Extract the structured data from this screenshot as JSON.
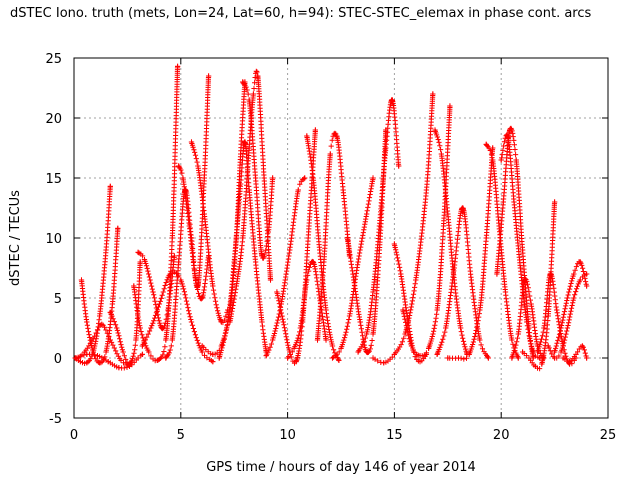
{
  "chart_data": {
    "type": "scatter",
    "title": "dSTEC Iono. truth (mets, Lon=24, Lat=60, h=94): STEC-STEC_elemax in phase cont. arcs",
    "xlabel": "GPS time / hours of day 146 of year 2014",
    "ylabel": "dSTEC  / TECUs",
    "xlim": [
      0,
      25
    ],
    "ylim": [
      -5,
      25
    ],
    "xticks": [
      "0",
      "5",
      "10",
      "15",
      "20",
      "25"
    ],
    "yticks": [
      "-5",
      "0",
      "5",
      "10",
      "15",
      "20",
      "25"
    ],
    "grid": true,
    "marker": "+",
    "color": "#ff0000",
    "series": [
      {
        "x": [
          0.05,
          0.3,
          0.6,
          0.9,
          1.2,
          1.5,
          1.7
        ],
        "y": [
          0.0,
          -0.3,
          -0.4,
          0.5,
          3.5,
          9.0,
          14.3
        ]
      },
      {
        "x": [
          0.35,
          0.6,
          0.9,
          1.2,
          1.5,
          1.8,
          2.05
        ],
        "y": [
          6.5,
          3.0,
          0.5,
          -0.4,
          0.5,
          4.5,
          10.8
        ]
      },
      {
        "x": [
          0.2,
          0.5,
          0.9,
          1.3,
          1.7,
          2.2,
          2.6
        ],
        "y": [
          0.0,
          0.5,
          1.6,
          2.8,
          1.5,
          -0.2,
          -0.6
        ]
      },
      {
        "x": [
          0.1,
          0.6,
          1.1,
          1.6,
          2.1,
          2.6,
          3.0,
          3.2
        ],
        "y": [
          0.0,
          0.3,
          0.2,
          -0.3,
          -0.8,
          -0.7,
          0.0,
          0.3
        ]
      },
      {
        "x": [
          1.7,
          2.0,
          2.3,
          2.6,
          2.9,
          3.1
        ],
        "y": [
          3.8,
          2.5,
          0.5,
          -0.5,
          1.5,
          8.0
        ]
      },
      {
        "x": [
          2.8,
          3.1,
          3.5,
          3.9,
          4.3,
          4.6,
          4.85
        ],
        "y": [
          6.0,
          2.5,
          0.5,
          -0.2,
          1.5,
          10.0,
          24.3
        ]
      },
      {
        "x": [
          3.0,
          3.3,
          3.7,
          4.1,
          4.4,
          4.7
        ],
        "y": [
          8.8,
          8.2,
          5.5,
          2.5,
          4.0,
          8.5
        ]
      },
      {
        "x": [
          3.2,
          3.6,
          4.0,
          4.5,
          5.0,
          5.5,
          6.0,
          6.5
        ],
        "y": [
          1.0,
          2.5,
          4.5,
          7.0,
          6.5,
          3.0,
          0.5,
          -0.3
        ]
      },
      {
        "x": [
          4.3,
          4.6,
          4.9,
          5.2,
          5.5,
          5.8,
          6.1,
          6.3
        ],
        "y": [
          0.0,
          1.5,
          8.0,
          14.0,
          10.0,
          6.0,
          15.0,
          23.5
        ]
      },
      {
        "x": [
          4.9,
          5.1,
          5.4,
          5.7,
          6.0,
          6.3
        ],
        "y": [
          16.0,
          15.0,
          11.0,
          6.5,
          5.0,
          8.5
        ]
      },
      {
        "x": [
          5.5,
          5.8,
          6.1,
          6.5,
          6.9,
          7.2
        ],
        "y": [
          18.0,
          16.0,
          12.0,
          6.0,
          3.0,
          4.0
        ]
      },
      {
        "x": [
          6.0,
          6.5,
          6.9,
          7.3,
          7.6,
          7.8,
          8.0
        ],
        "y": [
          1.0,
          0.3,
          1.0,
          4.0,
          10.0,
          17.0,
          23.0
        ]
      },
      {
        "x": [
          6.8,
          7.2,
          7.5,
          7.8,
          8.0,
          8.2,
          8.5,
          8.8,
          9.0
        ],
        "y": [
          0.0,
          3.0,
          8.0,
          14.5,
          18.0,
          14.0,
          8.0,
          3.0,
          0.5
        ]
      },
      {
        "x": [
          7.3,
          7.6,
          7.9,
          8.2,
          8.4,
          8.6,
          8.9,
          9.2
        ],
        "y": [
          3.0,
          6.0,
          10.0,
          17.5,
          22.0,
          23.5,
          15.0,
          6.5
        ]
      },
      {
        "x": [
          7.9,
          8.2,
          8.5,
          8.8,
          9.1,
          9.3
        ],
        "y": [
          23.0,
          21.5,
          15.0,
          8.5,
          10.5,
          15.0
        ]
      },
      {
        "x": [
          9.0,
          9.3,
          9.7,
          10.1,
          10.5,
          10.8
        ],
        "y": [
          0.2,
          1.5,
          4.5,
          9.0,
          14.0,
          15.0
        ]
      },
      {
        "x": [
          9.5,
          9.8,
          10.1,
          10.4,
          10.7,
          11.0,
          11.3
        ],
        "y": [
          5.5,
          3.0,
          0.5,
          -0.3,
          3.0,
          11.0,
          19.0
        ]
      },
      {
        "x": [
          10.0,
          10.3,
          10.6,
          10.9,
          11.2,
          11.5,
          11.8
        ],
        "y": [
          0.0,
          0.8,
          2.5,
          6.5,
          8.0,
          5.0,
          1.5
        ]
      },
      {
        "x": [
          10.9,
          11.2,
          11.5,
          11.8,
          12.1,
          12.4
        ],
        "y": [
          18.5,
          15.0,
          9.0,
          4.0,
          1.0,
          -0.2
        ]
      },
      {
        "x": [
          11.4,
          11.7,
          12.0,
          12.3,
          12.6,
          12.9
        ],
        "y": [
          1.5,
          8.0,
          17.0,
          18.5,
          14.0,
          8.5
        ]
      },
      {
        "x": [
          12.1,
          12.5,
          12.9,
          13.3,
          13.7,
          14.0
        ],
        "y": [
          0.0,
          0.8,
          3.5,
          8.0,
          12.0,
          15.0
        ]
      },
      {
        "x": [
          12.8,
          13.1,
          13.4,
          13.7,
          14.0,
          14.3,
          14.6
        ],
        "y": [
          10.0,
          6.5,
          3.0,
          0.5,
          2.0,
          9.0,
          19.0
        ]
      },
      {
        "x": [
          13.3,
          13.7,
          14.0,
          14.3,
          14.6,
          14.9,
          15.2
        ],
        "y": [
          0.5,
          2.0,
          5.5,
          11.0,
          17.5,
          21.5,
          16.0
        ]
      },
      {
        "x": [
          14.0,
          14.5,
          15.0,
          15.5,
          16.0,
          16.5,
          16.8
        ],
        "y": [
          0.0,
          -0.4,
          0.3,
          2.0,
          6.5,
          14.0,
          22.0
        ]
      },
      {
        "x": [
          15.0,
          15.3,
          15.6,
          15.9,
          16.2,
          16.5
        ],
        "y": [
          9.5,
          7.0,
          3.5,
          0.5,
          -0.3,
          0.3
        ]
      },
      {
        "x": [
          15.4,
          15.8,
          16.2,
          16.6,
          17.0,
          17.3,
          17.6
        ],
        "y": [
          4.0,
          1.0,
          0.2,
          0.8,
          4.0,
          11.0,
          21.0
        ]
      },
      {
        "x": [
          16.9,
          17.2,
          17.5,
          17.8,
          18.1,
          18.4
        ],
        "y": [
          19.0,
          17.0,
          12.0,
          6.5,
          2.5,
          0.3
        ]
      },
      {
        "x": [
          17.0,
          17.4,
          17.8,
          18.2,
          18.6,
          19.0,
          19.4
        ],
        "y": [
          0.3,
          2.5,
          7.5,
          12.5,
          6.5,
          1.5,
          0.0
        ]
      },
      {
        "x": [
          17.5,
          18.0,
          18.5,
          19.0,
          19.3,
          19.6
        ],
        "y": [
          0.0,
          0.0,
          0.3,
          4.0,
          10.0,
          17.5
        ]
      },
      {
        "x": [
          19.3,
          19.6,
          19.9,
          20.2,
          20.5,
          20.8
        ],
        "y": [
          17.8,
          16.5,
          11.0,
          5.5,
          1.5,
          0.0
        ]
      },
      {
        "x": [
          19.8,
          20.1,
          20.4,
          20.7,
          21.0,
          21.3,
          21.5
        ],
        "y": [
          7.0,
          13.0,
          19.0,
          16.5,
          9.0,
          2.5,
          0.0
        ]
      },
      {
        "x": [
          20.0,
          20.3,
          20.6,
          20.9,
          21.2,
          21.5,
          21.8
        ],
        "y": [
          16.5,
          18.5,
          13.0,
          7.5,
          3.0,
          0.5,
          0.0
        ]
      },
      {
        "x": [
          20.5,
          20.8,
          21.1,
          21.4,
          21.7,
          22.0
        ],
        "y": [
          0.0,
          2.0,
          6.5,
          4.5,
          1.0,
          0.0
        ]
      },
      {
        "x": [
          21.0,
          21.3,
          21.6,
          21.9,
          22.2,
          22.5
        ],
        "y": [
          0.5,
          0.0,
          -0.7,
          -0.5,
          3.5,
          13.0
        ]
      },
      {
        "x": [
          21.7,
          22.0,
          22.3,
          22.6,
          22.9,
          23.2,
          23.5
        ],
        "y": [
          0.5,
          2.5,
          7.0,
          4.0,
          1.0,
          -0.5,
          0.0
        ]
      },
      {
        "x": [
          22.2,
          22.5,
          22.8,
          23.1,
          23.4,
          23.7,
          24.0
        ],
        "y": [
          1.0,
          0.0,
          0.5,
          2.5,
          5.0,
          6.5,
          7.0
        ]
      },
      {
        "x": [
          22.5,
          22.8,
          23.1,
          23.4,
          23.7,
          24.0
        ],
        "y": [
          0.5,
          2.5,
          5.0,
          7.0,
          8.0,
          6.0
        ]
      },
      {
        "x": [
          22.9,
          23.2,
          23.5,
          23.8,
          24.0
        ],
        "y": [
          0.0,
          -0.3,
          0.3,
          1.0,
          0.0
        ]
      }
    ]
  }
}
